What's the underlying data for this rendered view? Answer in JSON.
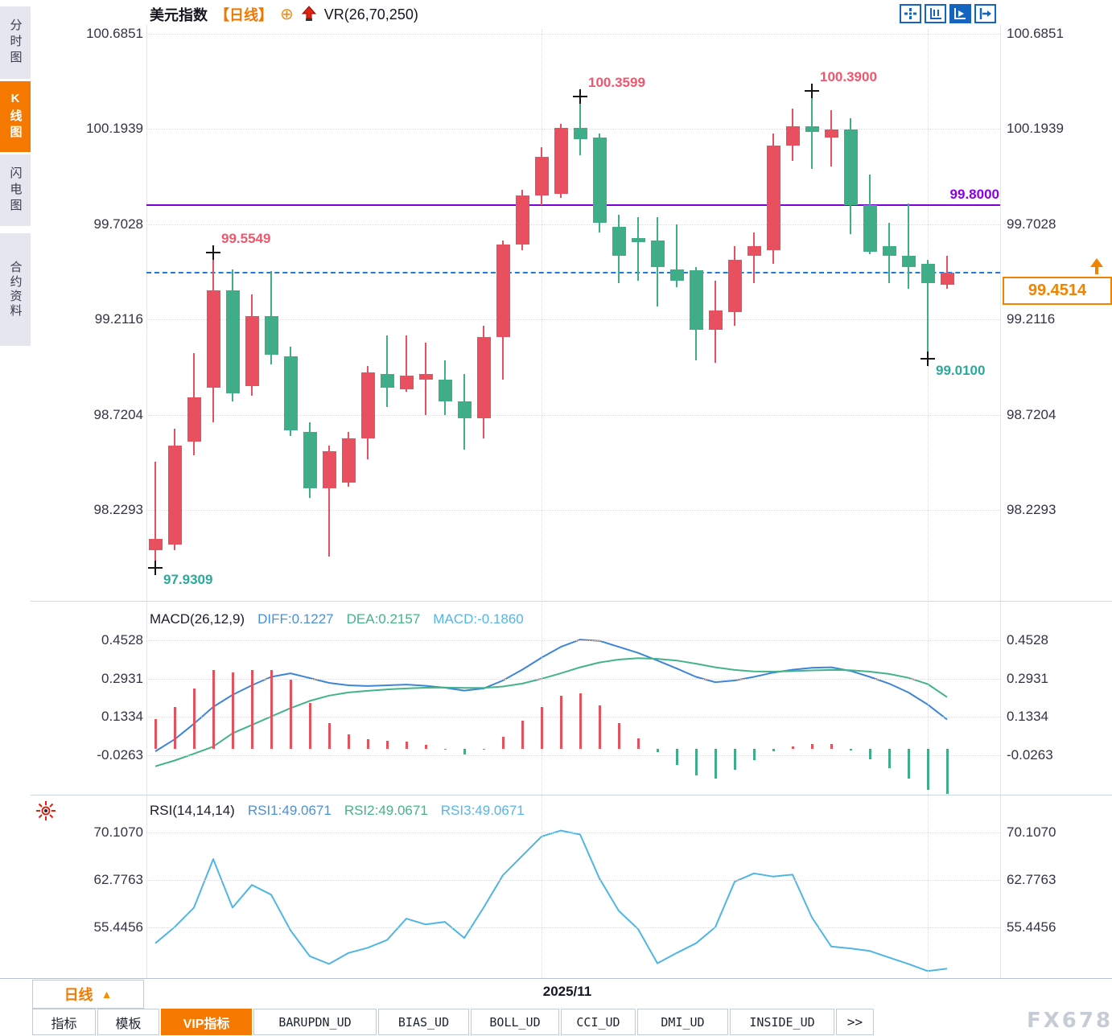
{
  "header": {
    "symbol": "美元指数",
    "period_tag": "【日线】",
    "crosshair_glyph": "⊕",
    "overlay": "VR(26,70,250)"
  },
  "sidebar": {
    "items": [
      {
        "label": "分时图",
        "selected": false
      },
      {
        "label": "K线图",
        "selected": true
      },
      {
        "label": "闪电图",
        "selected": false
      },
      {
        "label": "合约资料",
        "selected": false
      }
    ]
  },
  "colors": {
    "up": "#e8505f",
    "down": "#3fae88",
    "diff_line": "#3d85d8",
    "dea_line": "#43b389",
    "rsi_line": "#4fb6e4",
    "last_price_line": "#1c7ce0",
    "alert_line": "#7d00d8",
    "accent_orange": "#f57900",
    "toolbar_blue": "#1565c0"
  },
  "chart_data": {
    "type": "candlestick",
    "title": "美元指数 日线",
    "main": {
      "y_axis_labels": [
        "100.6851",
        "100.1939",
        "99.7028",
        "99.2116",
        "98.7204",
        "98.2293"
      ],
      "y_axis_values": [
        100.6851,
        100.1939,
        99.7028,
        99.2116,
        98.7204,
        98.2293
      ],
      "candles_ohlc": [
        [
          98.02,
          98.48,
          97.93,
          98.08
        ],
        [
          98.05,
          98.65,
          98.02,
          98.56
        ],
        [
          98.58,
          99.04,
          98.51,
          98.81
        ],
        [
          98.86,
          99.5549,
          98.68,
          99.36
        ],
        [
          99.36,
          99.47,
          98.79,
          98.83
        ],
        [
          98.87,
          99.34,
          98.82,
          99.23
        ],
        [
          99.23,
          99.46,
          98.98,
          99.03
        ],
        [
          99.02,
          99.07,
          98.61,
          98.64
        ],
        [
          98.63,
          98.68,
          98.29,
          98.34
        ],
        [
          98.34,
          98.56,
          97.99,
          98.53
        ],
        [
          98.37,
          98.63,
          98.35,
          98.6
        ],
        [
          98.6,
          98.97,
          98.49,
          98.94
        ],
        [
          98.93,
          99.13,
          98.76,
          98.86
        ],
        [
          98.85,
          99.13,
          98.84,
          98.92
        ],
        [
          98.9,
          99.09,
          98.72,
          98.93
        ],
        [
          98.9,
          99.0,
          98.72,
          98.79
        ],
        [
          98.79,
          98.93,
          98.54,
          98.7
        ],
        [
          98.7,
          99.18,
          98.6,
          99.12
        ],
        [
          99.12,
          99.62,
          98.9,
          99.6
        ],
        [
          99.6,
          99.88,
          99.57,
          99.85
        ],
        [
          99.85,
          100.1,
          99.8,
          100.05
        ],
        [
          99.86,
          100.22,
          99.84,
          100.2
        ],
        [
          100.2,
          100.3599,
          100.06,
          100.14
        ],
        [
          100.15,
          100.17,
          99.66,
          99.71
        ],
        [
          99.69,
          99.75,
          99.4,
          99.54
        ],
        [
          99.63,
          99.74,
          99.41,
          99.61
        ],
        [
          99.62,
          99.74,
          99.28,
          99.48
        ],
        [
          99.47,
          99.7,
          99.38,
          99.41
        ],
        [
          99.465,
          99.48,
          99.0,
          99.16
        ],
        [
          99.16,
          99.41,
          98.99,
          99.26
        ],
        [
          99.25,
          99.59,
          99.18,
          99.52
        ],
        [
          99.54,
          99.66,
          99.4,
          99.59
        ],
        [
          99.57,
          100.17,
          99.5,
          100.11
        ],
        [
          100.11,
          100.3,
          100.03,
          100.21
        ],
        [
          100.21,
          100.39,
          99.99,
          100.18
        ],
        [
          100.15,
          100.29,
          100.0,
          100.19
        ],
        [
          100.19,
          100.25,
          99.65,
          99.8
        ],
        [
          99.8,
          99.96,
          99.55,
          99.56
        ],
        [
          99.59,
          99.71,
          99.4,
          99.54
        ],
        [
          99.54,
          99.81,
          99.37,
          99.48
        ],
        [
          99.5,
          99.52,
          99.01,
          99.4
        ],
        [
          99.39,
          99.54,
          99.37,
          99.4514
        ]
      ],
      "swing_points": [
        {
          "index": 0,
          "dir": "low",
          "price": 97.9309,
          "text": "97.9309"
        },
        {
          "index": 3,
          "dir": "high",
          "price": 99.5549,
          "text": "99.5549"
        },
        {
          "index": 22,
          "dir": "high",
          "price": 100.3599,
          "text": "100.3599"
        },
        {
          "index": 34,
          "dir": "high",
          "price": 100.39,
          "text": "100.3900"
        },
        {
          "index": 40,
          "dir": "low",
          "price": 99.01,
          "text": "99.0100"
        }
      ],
      "lines": [
        {
          "type": "horizontal-alert",
          "value": 99.8,
          "label": "99.8000",
          "style": "solid",
          "color": "#7d00d8"
        },
        {
          "type": "last-price",
          "value": 99.4514,
          "style": "dashed",
          "color": "#1c7ce0"
        }
      ],
      "current_price": "99.4514"
    },
    "macd": {
      "title": "MACD(26,12,9)",
      "legend": [
        {
          "label": "DIFF:0.1227",
          "color": "#4a90dd"
        },
        {
          "label": "DEA:0.2157",
          "color": "#43b389"
        },
        {
          "label": "MACD:-0.1860",
          "color": "#54b6ea"
        }
      ],
      "y_axis_labels": [
        "0.4528",
        "0.2931",
        "0.1334",
        "-0.0263"
      ],
      "y_axis_values": [
        0.4528,
        0.2931,
        0.1334,
        -0.0263
      ],
      "histogram_formula": "2*(DIFF-DEA)",
      "diff": [
        -0.01,
        0.04,
        0.105,
        0.175,
        0.225,
        0.265,
        0.3,
        0.315,
        0.295,
        0.275,
        0.265,
        0.262,
        0.265,
        0.268,
        0.263,
        0.255,
        0.243,
        0.252,
        0.285,
        0.33,
        0.38,
        0.425,
        0.455,
        0.45,
        0.425,
        0.4,
        0.368,
        0.335,
        0.3,
        0.278,
        0.285,
        0.3,
        0.318,
        0.33,
        0.338,
        0.34,
        0.325,
        0.3,
        0.272,
        0.235,
        0.185,
        0.1227
      ],
      "dea": [
        -0.072,
        -0.048,
        -0.02,
        0.01,
        0.065,
        0.1,
        0.135,
        0.17,
        0.2,
        0.222,
        0.235,
        0.242,
        0.248,
        0.252,
        0.255,
        0.256,
        0.254,
        0.254,
        0.26,
        0.272,
        0.292,
        0.315,
        0.34,
        0.36,
        0.372,
        0.378,
        0.375,
        0.368,
        0.355,
        0.34,
        0.329,
        0.323,
        0.322,
        0.324,
        0.327,
        0.329,
        0.328,
        0.322,
        0.312,
        0.296,
        0.27,
        0.2157
      ]
    },
    "rsi": {
      "title": "RSI(14,14,14)",
      "legend": [
        {
          "label": "RSI1:49.0671",
          "color": "#4a90dd"
        },
        {
          "label": "RSI2:49.0671",
          "color": "#43b389"
        },
        {
          "label": "RSI3:49.0671",
          "color": "#54b6ea"
        }
      ],
      "y_axis_labels": [
        "70.1070",
        "62.7763",
        "55.4456"
      ],
      "y_axis_values": [
        70.107,
        62.7763,
        55.4456
      ],
      "values": [
        53.0,
        55.5,
        58.5,
        66.0,
        58.5,
        62.0,
        60.5,
        55.0,
        51.0,
        49.8,
        51.5,
        52.3,
        53.5,
        56.8,
        55.9,
        56.3,
        53.8,
        58.5,
        63.5,
        66.5,
        69.5,
        70.4,
        69.8,
        63.0,
        58.0,
        55.2,
        49.9,
        51.5,
        53.0,
        55.5,
        62.5,
        63.8,
        63.3,
        63.6,
        57.0,
        52.5,
        52.2,
        51.8,
        50.8,
        49.8,
        48.7,
        49.0671
      ]
    },
    "x_axis": {
      "month_label": "2025/11",
      "month_boundary_indices": [
        20,
        40
      ]
    }
  },
  "bottom": {
    "period_button": {
      "label": "日线",
      "arrow": "▲"
    },
    "month_label": "2025/11",
    "tabs": [
      {
        "label": "指标",
        "selected": false
      },
      {
        "label": "模板",
        "selected": false
      },
      {
        "label": "VIP指标",
        "selected": true
      },
      {
        "label": "BARUPDN_UD",
        "selected": false
      },
      {
        "label": "BIAS_UD",
        "selected": false
      },
      {
        "label": "BOLL_UD",
        "selected": false
      },
      {
        "label": "CCI_UD",
        "selected": false
      },
      {
        "label": "DMI_UD",
        "selected": false
      },
      {
        "label": "INSIDE_UD",
        "selected": false
      },
      {
        "label": ">>",
        "selected": false
      }
    ]
  },
  "watermark": "FX678"
}
